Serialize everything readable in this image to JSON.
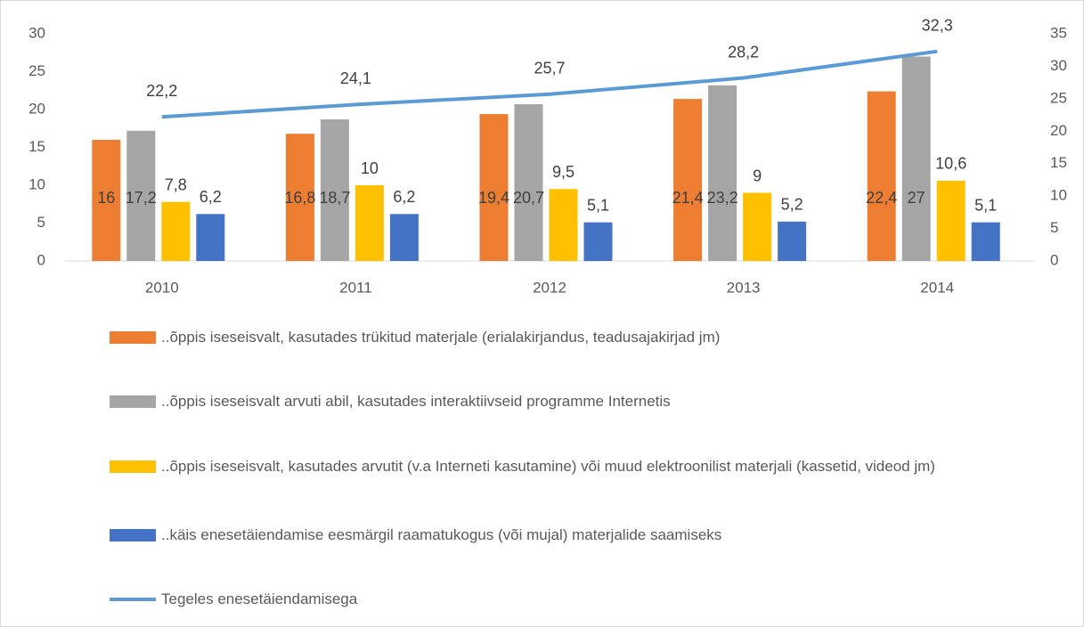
{
  "chart_data": {
    "type": "bar",
    "categories": [
      "2010",
      "2011",
      "2012",
      "2013",
      "2014"
    ],
    "ylim": [
      0,
      30
    ],
    "yticks": [
      0,
      5,
      10,
      15,
      20,
      25,
      30
    ],
    "y2lim": [
      0,
      35
    ],
    "y2ticks": [
      0,
      5,
      10,
      15,
      20,
      25,
      30,
      35
    ],
    "legend": "bottom",
    "series": [
      {
        "name": "..õppis iseseisvalt, kasutades trükitud materjale (erialakirjandus, teadusajakirjad jm)",
        "color": "#ED7D31",
        "values": [
          16,
          16.8,
          19.4,
          21.4,
          22.4
        ],
        "value_labels": [
          "16",
          "16,8",
          "19,4",
          "21,4",
          "22,4"
        ]
      },
      {
        "name": "..õppis iseseisvalt arvuti abil, kasutades interaktiivseid programme Internetis",
        "color": "#A5A5A5",
        "values": [
          17.2,
          18.7,
          20.7,
          23.2,
          27
        ],
        "value_labels": [
          "17,2",
          "18,7",
          "20,7",
          "23,2",
          "27"
        ]
      },
      {
        "name": "..õppis iseseisvalt, kasutades arvutit (v.a Interneti kasutamine) või muud elektroonilist materjali (kassetid, videod jm)",
        "color": "#FFC000",
        "values": [
          7.8,
          10,
          9.5,
          9,
          10.6
        ],
        "value_labels": [
          "7,8",
          "10",
          "9,5",
          "9",
          "10,6"
        ]
      },
      {
        "name": "..käis enesetäiendamise eesmärgil raamatukogus (või mujal) materjalide saamiseks",
        "color": "#4472C4",
        "values": [
          6.2,
          6.2,
          5.1,
          5.2,
          5.1
        ],
        "value_labels": [
          "6,2",
          "6,2",
          "5,1",
          "5,2",
          "5,1"
        ]
      },
      {
        "name": "Tegeles enesetäiendamisega",
        "color": "#5B9BD5",
        "type": "line",
        "axis": "y2",
        "values": [
          22.2,
          24.1,
          25.7,
          28.2,
          32.3
        ],
        "value_labels": [
          "22,2",
          "24,1",
          "25,7",
          "28,2",
          "32,3"
        ]
      }
    ]
  }
}
